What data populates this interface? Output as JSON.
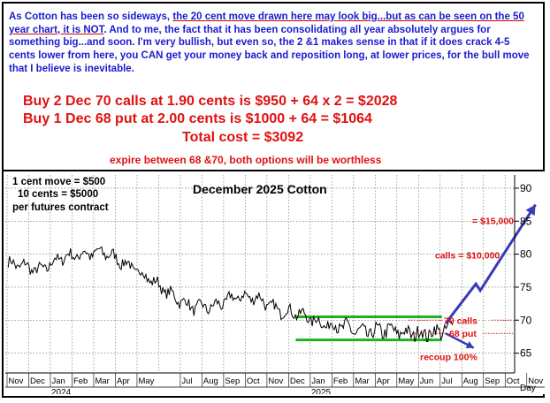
{
  "commentary": {
    "p1": "As Cotton has been so sideways, ",
    "p2": "the 20 cent move drawn here may look big...but as can be seen on the 50 year chart, it is NOT",
    "p3": ". And to me, the fact that it has been consolidating all year absolutely argues for something big...and soon. I'm very bullish, but even so, the 2 &1 makes sense in that if it does crack 4-5 cents lower from here, you CAN get your money back and reposition long, at lower prices, for the bull move that I believe is inevitable."
  },
  "trade": {
    "line1": "Buy 2 Dec 70 calls at 1.90 cents is $950 + 64 x 2 = $2028",
    "line2": "Buy 1 Dec 68 put at 2.00 cents is $1000 + 64 = $1064",
    "total": "Total cost = $3092",
    "expire": "expire between 68 &70, both options will be worthless"
  },
  "notes": {
    "cent": "1 cent move = $500",
    "ten": "10 cents = $5000",
    "per": "per futures contract"
  },
  "colors": {
    "commentary": "#1b1bd0",
    "trade": "#e01010",
    "projection": "#3a3ab8",
    "band": "#1db31d",
    "price": "#000000"
  },
  "chart_data": {
    "type": "line",
    "title": "December 2025 Cotton",
    "ylabel": "",
    "xlabel": "Day",
    "ylim": [
      62,
      92
    ],
    "yticks": [
      65,
      70,
      75,
      80,
      85,
      90
    ],
    "x_tick_labels": [
      "Nov",
      "Dec",
      "Jan",
      "Feb",
      "Mar",
      "Apr",
      "May",
      "Jul",
      "Aug",
      "Sep",
      "Oct",
      "Nov",
      "Dec",
      "Jan",
      "Feb",
      "Mar",
      "Apr",
      "May",
      "Jun",
      "Jul",
      "Aug",
      "Sep",
      "Oct",
      "Nov"
    ],
    "year_labels": [
      "2024",
      "2025"
    ],
    "series": [
      {
        "values_approx": [
          [
            "2023-11",
            78.5
          ],
          [
            "2023-12",
            77.5
          ],
          [
            "2024-01",
            79.5
          ],
          [
            "2024-02",
            80.0
          ],
          [
            "2024-03",
            80.3
          ],
          [
            "2024-04",
            78.5
          ],
          [
            "2024-05",
            76.5
          ],
          [
            "2024-06",
            74.0
          ],
          [
            "2024-07",
            72.0
          ],
          [
            "2024-08",
            72.0
          ],
          [
            "2024-09",
            73.5
          ],
          [
            "2024-10",
            73.5
          ],
          [
            "2024-11",
            71.5
          ],
          [
            "2024-12",
            71.0
          ],
          [
            "2025-01",
            69.5
          ],
          [
            "2025-02",
            69.0
          ],
          [
            "2025-03",
            68.0
          ],
          [
            "2025-04",
            68.5
          ],
          [
            "2025-05",
            68.0
          ],
          [
            "2025-06",
            68.0
          ],
          [
            "2025-07",
            68.8
          ]
        ]
      }
    ],
    "bands": [
      {
        "label": "70 calls",
        "value": 70.5
      },
      {
        "label": "68 put",
        "value": 67.0
      }
    ],
    "projection": {
      "path": [
        [
          "2025-07",
          69.5
        ],
        [
          "2025-08",
          75.5
        ],
        [
          "2025-08",
          74.5
        ],
        [
          "2025-10",
          87.5
        ]
      ],
      "down_path": [
        [
          "2025-07",
          68.0
        ],
        [
          "2025-08",
          65.8
        ]
      ]
    },
    "annotations": {
      "target_high": "= $15,000",
      "target_mid": "calls = $10,000",
      "calls_label": "70 calls",
      "put_label": "68 put",
      "recoup": "recoup 100%"
    }
  }
}
